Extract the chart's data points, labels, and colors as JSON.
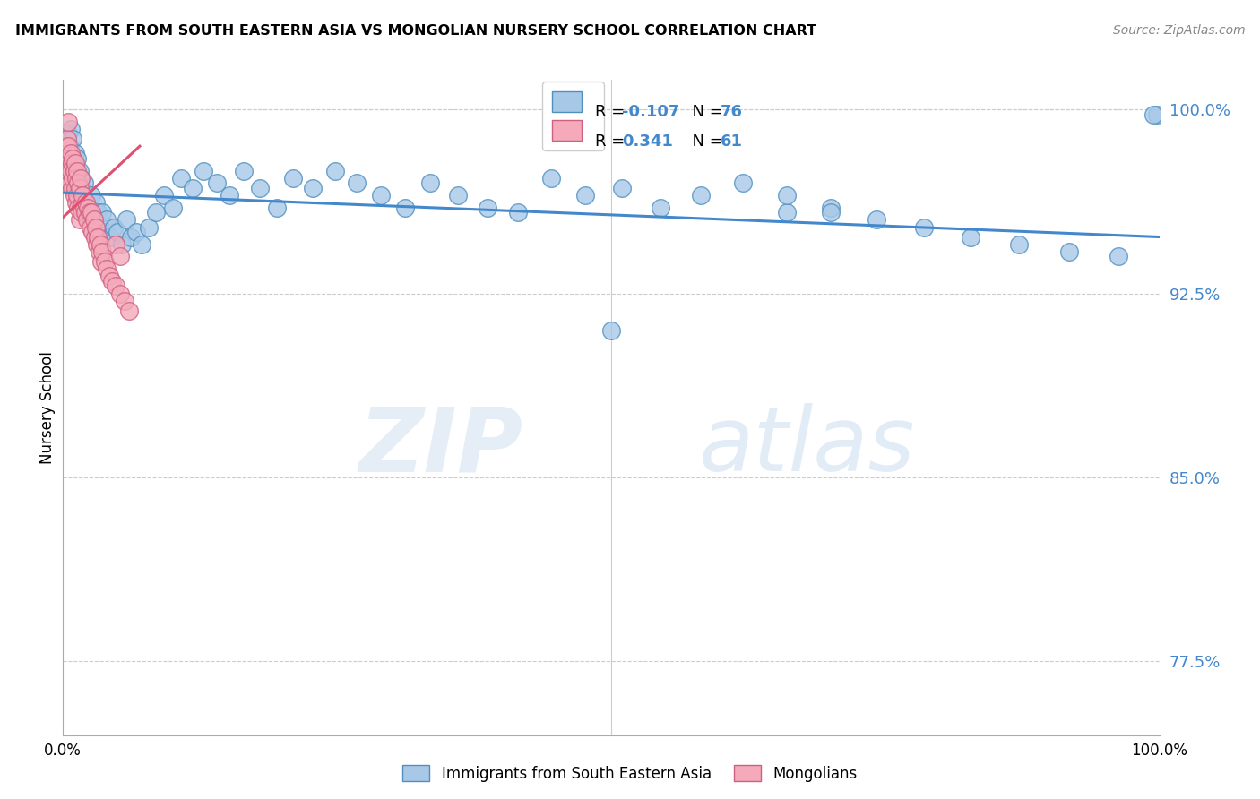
{
  "title": "IMMIGRANTS FROM SOUTH EASTERN ASIA VS MONGOLIAN NURSERY SCHOOL CORRELATION CHART",
  "source": "Source: ZipAtlas.com",
  "ylabel": "Nursery School",
  "xlim": [
    0.0,
    1.0
  ],
  "ylim": [
    0.745,
    1.012
  ],
  "yticks": [
    0.775,
    0.85,
    0.925,
    1.0
  ],
  "ytick_labels": [
    "77.5%",
    "85.0%",
    "92.5%",
    "100.0%"
  ],
  "blue_R": -0.107,
  "blue_N": 76,
  "pink_R": 0.341,
  "pink_N": 61,
  "blue_color": "#A8C8E8",
  "pink_color": "#F4AABB",
  "blue_edge_color": "#5090C0",
  "pink_edge_color": "#D06080",
  "blue_line_color": "#4488CC",
  "pink_line_color": "#E05070",
  "watermark_zip": "ZIP",
  "watermark_atlas": "atlas",
  "legend_label_blue": "Immigrants from South Eastern Asia",
  "legend_label_pink": "Mongolians",
  "blue_x": [
    0.003,
    0.005,
    0.006,
    0.007,
    0.008,
    0.009,
    0.01,
    0.011,
    0.012,
    0.013,
    0.014,
    0.015,
    0.016,
    0.017,
    0.018,
    0.019,
    0.02,
    0.022,
    0.024,
    0.026,
    0.028,
    0.03,
    0.032,
    0.034,
    0.036,
    0.038,
    0.04,
    0.043,
    0.046,
    0.05,
    0.054,
    0.058,
    0.062,
    0.067,
    0.072,
    0.078,
    0.085,
    0.092,
    0.1,
    0.108,
    0.118,
    0.128,
    0.14,
    0.152,
    0.165,
    0.18,
    0.195,
    0.21,
    0.228,
    0.248,
    0.268,
    0.29,
    0.312,
    0.335,
    0.36,
    0.387,
    0.415,
    0.445,
    0.476,
    0.51,
    0.545,
    0.582,
    0.62,
    0.66,
    0.7,
    0.742,
    0.785,
    0.828,
    0.872,
    0.918,
    0.963,
    0.998,
    0.66,
    0.7,
    0.995,
    0.5
  ],
  "blue_y": [
    0.988,
    0.99,
    0.985,
    0.992,
    0.98,
    0.988,
    0.978,
    0.982,
    0.975,
    0.98,
    0.97,
    0.975,
    0.972,
    0.968,
    0.965,
    0.97,
    0.962,
    0.96,
    0.958,
    0.965,
    0.955,
    0.962,
    0.958,
    0.952,
    0.958,
    0.95,
    0.955,
    0.948,
    0.952,
    0.95,
    0.945,
    0.955,
    0.948,
    0.95,
    0.945,
    0.952,
    0.958,
    0.965,
    0.96,
    0.972,
    0.968,
    0.975,
    0.97,
    0.965,
    0.975,
    0.968,
    0.96,
    0.972,
    0.968,
    0.975,
    0.97,
    0.965,
    0.96,
    0.97,
    0.965,
    0.96,
    0.958,
    0.972,
    0.965,
    0.968,
    0.96,
    0.965,
    0.97,
    0.958,
    0.96,
    0.955,
    0.952,
    0.948,
    0.945,
    0.942,
    0.94,
    0.998,
    0.965,
    0.958,
    0.998,
    0.91
  ],
  "pink_x": [
    0.001,
    0.002,
    0.003,
    0.003,
    0.004,
    0.004,
    0.005,
    0.005,
    0.006,
    0.006,
    0.007,
    0.007,
    0.008,
    0.008,
    0.009,
    0.009,
    0.01,
    0.01,
    0.011,
    0.011,
    0.012,
    0.012,
    0.013,
    0.013,
    0.014,
    0.014,
    0.015,
    0.015,
    0.016,
    0.016,
    0.017,
    0.018,
    0.019,
    0.02,
    0.021,
    0.022,
    0.023,
    0.024,
    0.025,
    0.026,
    0.027,
    0.028,
    0.029,
    0.03,
    0.031,
    0.032,
    0.033,
    0.034,
    0.035,
    0.036,
    0.038,
    0.04,
    0.042,
    0.045,
    0.048,
    0.052,
    0.056,
    0.06,
    0.005,
    0.048,
    0.052
  ],
  "pink_y": [
    0.972,
    0.978,
    0.982,
    0.985,
    0.98,
    0.988,
    0.975,
    0.985,
    0.97,
    0.98,
    0.975,
    0.982,
    0.968,
    0.978,
    0.972,
    0.98,
    0.965,
    0.975,
    0.968,
    0.978,
    0.962,
    0.972,
    0.965,
    0.975,
    0.96,
    0.97,
    0.955,
    0.968,
    0.96,
    0.972,
    0.958,
    0.965,
    0.96,
    0.958,
    0.962,
    0.955,
    0.96,
    0.958,
    0.952,
    0.958,
    0.95,
    0.955,
    0.948,
    0.952,
    0.945,
    0.948,
    0.942,
    0.945,
    0.938,
    0.942,
    0.938,
    0.935,
    0.932,
    0.93,
    0.928,
    0.925,
    0.922,
    0.918,
    0.995,
    0.945,
    0.94
  ],
  "blue_line_x0": 0.0,
  "blue_line_x1": 1.0,
  "blue_line_y0": 0.966,
  "blue_line_y1": 0.948,
  "pink_line_x0": 0.0,
  "pink_line_x1": 0.07,
  "pink_line_y0": 0.956,
  "pink_line_y1": 0.985
}
